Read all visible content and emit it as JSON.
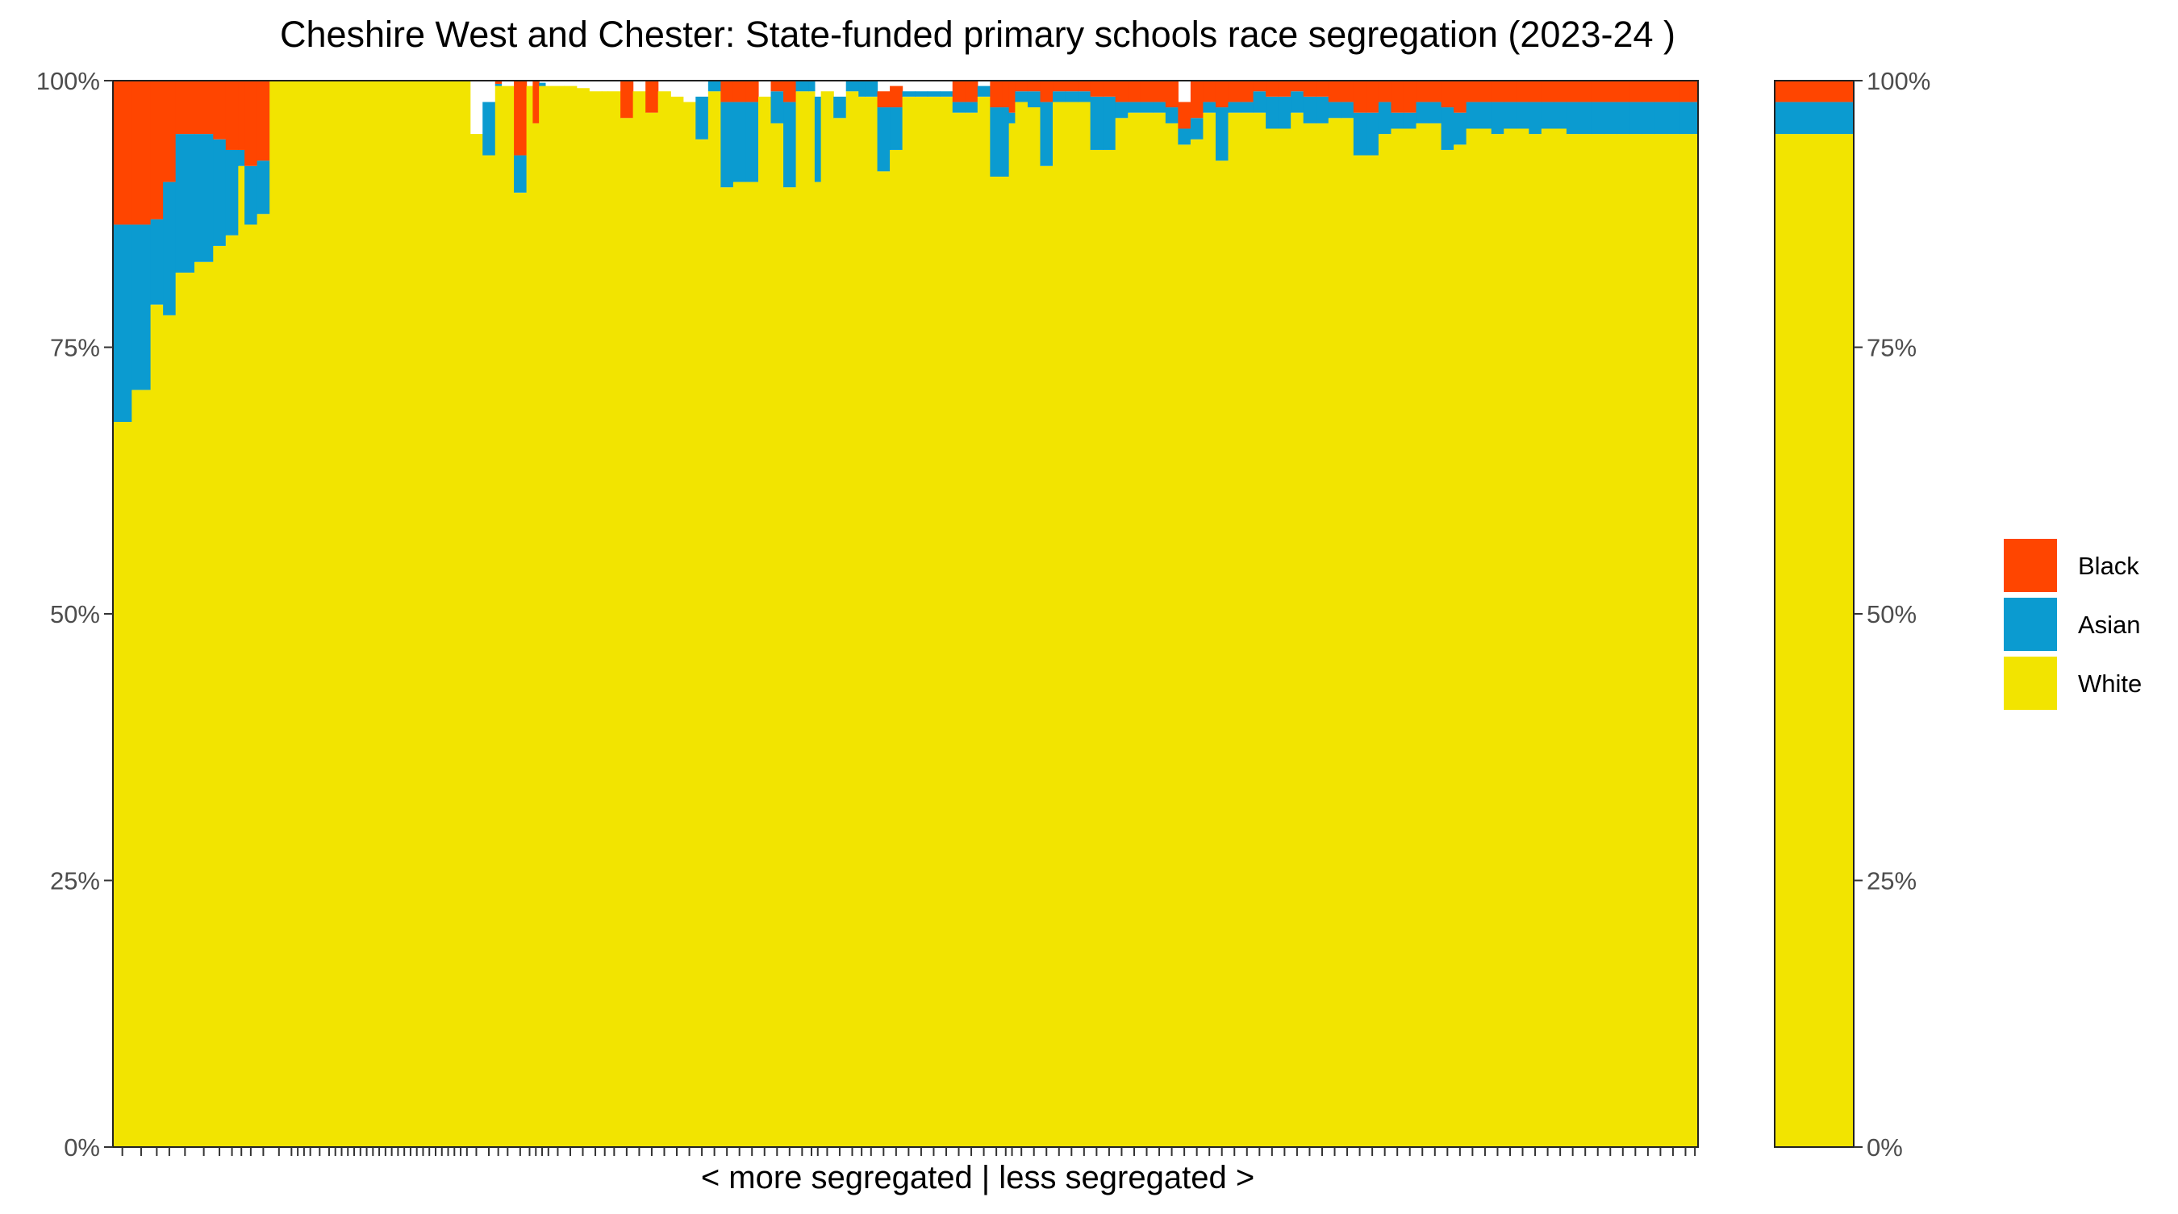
{
  "chart_data": {
    "type": "bar",
    "stacked": true,
    "title": "Cheshire West and Chester: State-funded primary schools race segregation (2023-24 )",
    "xlabel": "< more segregated | less segregated >",
    "ylabel": "",
    "ylim": [
      0,
      100
    ],
    "y_ticks": [
      "0%",
      "25%",
      "50%",
      "75%",
      "100%"
    ],
    "legend": {
      "position": "right",
      "items": [
        {
          "name": "Black",
          "color": "#FF4500"
        },
        {
          "name": "Asian",
          "color": "#0B9BD0"
        },
        {
          "name": "White",
          "color": "#F2E400"
        }
      ]
    },
    "colors": {
      "Black": "#FF4500",
      "Asian": "#0B9BD0",
      "White": "#F2E400",
      "other": "#FFFFFF"
    },
    "schools": {
      "weights": [
        3,
        3,
        2,
        2,
        3,
        3,
        2,
        2,
        1,
        2,
        2,
        3,
        1,
        1,
        1,
        1,
        2,
        1,
        1,
        1,
        1,
        1,
        1,
        1,
        1,
        1,
        1,
        1,
        1,
        1,
        1,
        1,
        1,
        1,
        1,
        1,
        1,
        1,
        1,
        1,
        2,
        2,
        1,
        2,
        2,
        1,
        1,
        1,
        1,
        2,
        2,
        2,
        2,
        1,
        2,
        2,
        2,
        2,
        2,
        2,
        2,
        2,
        2,
        2,
        2,
        2,
        2,
        2,
        2,
        2,
        1,
        1,
        2,
        2,
        2,
        1,
        2,
        2,
        2,
        2,
        2,
        2,
        2,
        2,
        2,
        2,
        2,
        1,
        1,
        2,
        2,
        2,
        2,
        2,
        2,
        2,
        2,
        2,
        2,
        2,
        2,
        2,
        2,
        2,
        2,
        2,
        2,
        2,
        2,
        2,
        2,
        2,
        2,
        2,
        2,
        2,
        2,
        2,
        2,
        2,
        2,
        2,
        2,
        2,
        2,
        2,
        2,
        2,
        2,
        2,
        2,
        2,
        2,
        2,
        2,
        2,
        2,
        2,
        2,
        2,
        2,
        2,
        2,
        1
      ],
      "white": [
        68,
        71,
        79,
        78,
        82,
        83,
        84.5,
        85.5,
        92,
        86.5,
        87.5,
        100,
        100,
        100,
        100,
        100,
        100,
        100,
        100,
        100,
        100,
        100,
        100,
        100,
        100,
        100,
        100,
        100,
        100,
        100,
        100,
        100,
        100,
        100,
        100,
        100,
        100,
        100,
        100,
        100,
        95,
        93,
        99.5,
        99.5,
        89.5,
        99.5,
        96,
        99.5,
        99.5,
        99.5,
        99.5,
        99.3,
        99,
        99,
        99,
        96.5,
        99,
        97,
        99,
        98.5,
        98,
        94.5,
        99,
        90,
        90.5,
        90.5,
        98.5,
        96,
        90,
        99,
        99,
        90.5,
        99,
        96.5,
        99,
        98.5,
        98.5,
        91.5,
        93.5,
        98.5,
        98.5,
        98.5,
        98.5,
        97,
        97,
        98.5,
        91,
        91,
        96,
        98,
        97.5,
        92,
        98,
        98,
        98,
        93.5,
        93.5,
        96.5,
        97,
        97,
        97,
        96,
        94,
        94.5,
        97,
        92.5,
        97,
        97,
        97,
        95.5,
        95.5,
        97,
        96,
        96,
        96.5,
        96.5,
        93,
        93,
        95,
        95.5,
        95.5,
        96,
        96,
        93.5,
        94,
        95.5,
        95.5,
        95,
        95.5,
        95.5,
        95,
        95.5,
        95.5,
        95,
        95,
        95,
        95,
        95,
        95,
        95,
        95,
        95,
        95,
        95,
        95,
        95
      ],
      "asian": [
        18.5,
        15.5,
        8,
        12.5,
        13,
        12,
        10,
        8,
        1.5,
        5.5,
        5,
        0,
        0,
        0,
        0,
        0,
        0,
        0,
        0,
        0,
        0,
        0,
        0,
        0,
        0,
        0,
        0,
        0,
        0,
        0,
        0,
        0,
        0,
        0,
        0,
        0,
        0,
        0,
        0,
        0,
        0,
        5,
        0.2,
        0,
        3.5,
        0,
        0,
        0.3,
        0,
        0,
        0,
        0,
        0,
        0,
        0,
        0,
        0,
        0,
        0,
        0,
        0,
        4,
        1,
        8,
        7.5,
        7.5,
        0,
        3,
        8,
        1,
        1,
        8,
        0,
        2,
        1,
        1.5,
        1.5,
        6,
        4,
        0.5,
        0.5,
        0.5,
        0.5,
        1,
        1,
        1,
        6.5,
        6.5,
        1,
        1,
        1.5,
        6,
        1,
        1,
        1,
        5,
        5,
        1.5,
        1,
        1,
        1,
        1.5,
        1.5,
        2,
        1,
        5,
        1,
        1,
        2,
        3,
        3,
        2,
        2.5,
        2.5,
        1.5,
        1.5,
        4,
        4,
        3,
        1.5,
        1.5,
        2,
        2,
        4,
        3,
        2.5,
        2.5,
        3,
        2.5,
        2.5,
        3,
        2.5,
        2.5,
        3,
        3,
        3,
        3,
        3,
        3,
        3,
        3,
        3,
        3,
        3,
        3,
        3
      ],
      "black": [
        13.5,
        13.5,
        13,
        9.5,
        5,
        5,
        5.5,
        6.5,
        6.5,
        8,
        7.5,
        0,
        0,
        0,
        0,
        0,
        0,
        0,
        0,
        0,
        0,
        0,
        0,
        0,
        0,
        0,
        0,
        0,
        0,
        0,
        0,
        0,
        0,
        0,
        0,
        0,
        0,
        0,
        0,
        0,
        0,
        0,
        0.3,
        0,
        7,
        0,
        4,
        0,
        0,
        0,
        0,
        0,
        0,
        0,
        0,
        3.5,
        0,
        3,
        0,
        0,
        0,
        0,
        0,
        2,
        2,
        2,
        0,
        1,
        2,
        0,
        0,
        0,
        0,
        0,
        0,
        0,
        0,
        1.5,
        2,
        0,
        0,
        0,
        0,
        2,
        2,
        0,
        2.5,
        2.5,
        3,
        1,
        1,
        2,
        1,
        1,
        1,
        1.5,
        1.5,
        2,
        2,
        2,
        2,
        2.5,
        2.5,
        3.5,
        2,
        2.5,
        2,
        2,
        1,
        1.5,
        1.5,
        1,
        1.5,
        1.5,
        2,
        2,
        3,
        3,
        2,
        3,
        3,
        2,
        2,
        2.5,
        3,
        2,
        2,
        2,
        2,
        2,
        2,
        2,
        2,
        2,
        2,
        2,
        2,
        2,
        2,
        2,
        2,
        2,
        2,
        2,
        2,
        2,
        2,
        2
      ]
    },
    "overall": {
      "white": 95,
      "asian": 3,
      "black": 2
    }
  }
}
